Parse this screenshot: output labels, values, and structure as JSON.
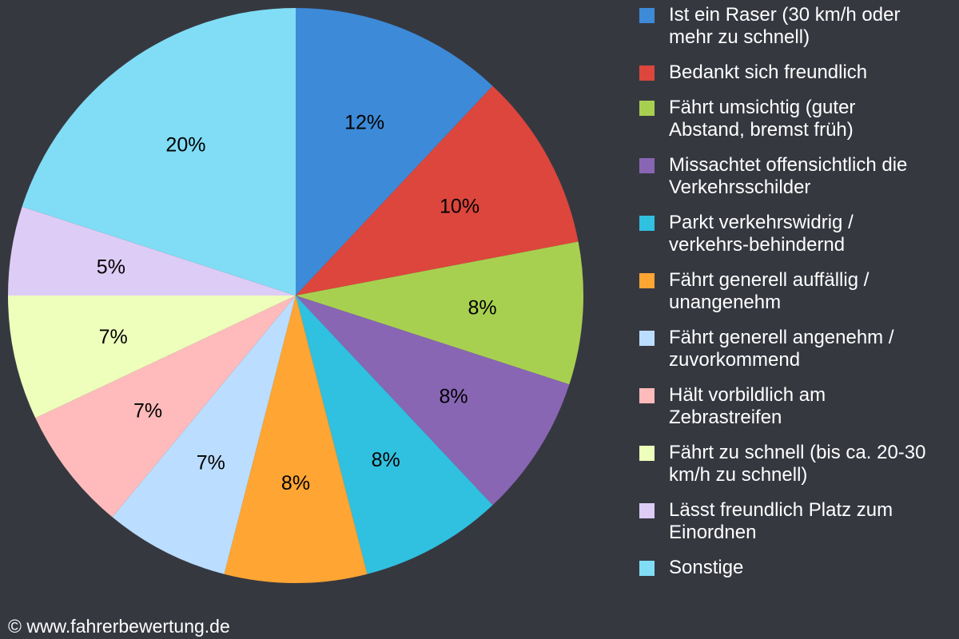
{
  "chart_data": {
    "type": "pie",
    "start": "top",
    "direction": "clockwise",
    "legend_position": "right",
    "slices": [
      {
        "label": "Ist ein Raser (30 km/h oder\nmehr zu schnell)",
        "value": 12,
        "display": "12%",
        "color": "#3d8ad8"
      },
      {
        "label": "Bedankt sich freundlich",
        "value": 10,
        "display": "10%",
        "color": "#dc463c"
      },
      {
        "label": "Fährt umsichtig (guter\nAbstand, bremst früh)",
        "value": 8,
        "display": "8%",
        "color": "#a8d050"
      },
      {
        "label": "Missachtet offensichtlich die\nVerkehrsschilder",
        "value": 8,
        "display": "8%",
        "color": "#8866b4"
      },
      {
        "label": "Parkt verkehrswidrig /\nverkehrs-behindernd",
        "value": 8,
        "display": "8%",
        "color": "#30c0e0"
      },
      {
        "label": "Fährt generell auffällig /\nunangenehm",
        "value": 8,
        "display": "8%",
        "color": "#ffa533"
      },
      {
        "label": "Fährt generell angenehm /\nzuvorkommend",
        "value": 7,
        "display": "7%",
        "color": "#bbddff"
      },
      {
        "label": "Hält vorbildlich am\nZebrastreifen",
        "value": 7,
        "display": "7%",
        "color": "#ffbbbb"
      },
      {
        "label": "Fährt zu schnell (bis ca. 20-30\nkm/h zu schnell)",
        "value": 7,
        "display": "7%",
        "color": "#eeffbb"
      },
      {
        "label": "Lässt freundlich Platz zum\nEinordnen",
        "value": 5,
        "display": "5%",
        "color": "#ddccf5"
      },
      {
        "label": "Sonstige",
        "value": 20,
        "display": "20%",
        "color": "#80ddf5"
      }
    ]
  },
  "credit": "© www.fahrerbewertung.de"
}
